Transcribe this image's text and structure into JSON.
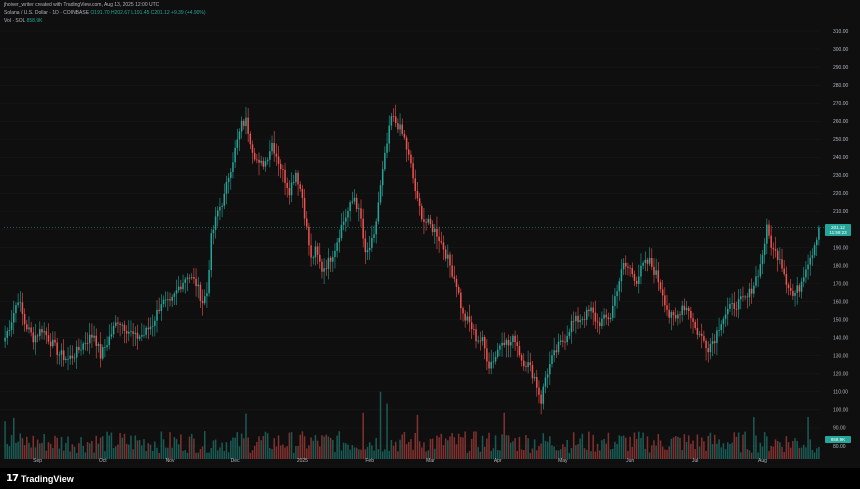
{
  "header": {
    "creator_line": "jhoiver_writer created with TradingView.com, Aug 13, 2025 12:00 UTC",
    "symbol_line": "Solana / U.S. Dollar · 1D · COINBASE",
    "ohlc": "O191.70 H202.67 L191.45 C201.12 +9.39 (+4.90%)",
    "vol_label": "Vol · SOL",
    "vol_value": "858.9K"
  },
  "price_tag": {
    "value": "201.12",
    "countdown": "11:59:23"
  },
  "vol_tag": {
    "value": "858.9K"
  },
  "footer": {
    "brand_mark": "17",
    "brand_name": "TradingView"
  },
  "colors": {
    "up": "#26a69a",
    "down": "#ef5350",
    "background": "#0f0f0f",
    "grid": "#1c1c1c"
  },
  "chart_data": {
    "type": "candlestick",
    "interval": "1D",
    "symbol": "Solana / U.S. Dollar",
    "exchange": "COINBASE",
    "y_ticks": [
      "310.00",
      "300.00",
      "290.00",
      "280.00",
      "270.00",
      "260.00",
      "250.00",
      "240.00",
      "230.00",
      "220.00",
      "210.00",
      "200.00",
      "190.00",
      "180.00",
      "170.00",
      "160.00",
      "150.00",
      "140.00",
      "130.00",
      "120.00",
      "110.00",
      "100.00",
      "90.00",
      "80.00"
    ],
    "ylim": [
      75,
      315
    ],
    "x_ticks": [
      "Sep",
      "Oct",
      "Nov",
      "Dec",
      "2025",
      "Feb",
      "Mar",
      "Apr",
      "May",
      "Jun",
      "Jul",
      "Aug"
    ],
    "x_tick_index": [
      15,
      45,
      76,
      106,
      137,
      168,
      196,
      227,
      257,
      288,
      318,
      349
    ],
    "close_path": [
      [
        0,
        140
      ],
      [
        3,
        150
      ],
      [
        6,
        162
      ],
      [
        9,
        148
      ],
      [
        13,
        140
      ],
      [
        17,
        145
      ],
      [
        21,
        138
      ],
      [
        25,
        131
      ],
      [
        29,
        128
      ],
      [
        33,
        132
      ],
      [
        37,
        138
      ],
      [
        41,
        142
      ],
      [
        44,
        130
      ],
      [
        48,
        140
      ],
      [
        52,
        150
      ],
      [
        56,
        145
      ],
      [
        60,
        140
      ],
      [
        64,
        142
      ],
      [
        68,
        148
      ],
      [
        72,
        160
      ],
      [
        76,
        158
      ],
      [
        80,
        168
      ],
      [
        84,
        175
      ],
      [
        88,
        170
      ],
      [
        91,
        160
      ],
      [
        93,
        165
      ],
      [
        95,
        195
      ],
      [
        98,
        210
      ],
      [
        101,
        218
      ],
      [
        103,
        230
      ],
      [
        106,
        244
      ],
      [
        109,
        258
      ],
      [
        111,
        260
      ],
      [
        114,
        245
      ],
      [
        117,
        235
      ],
      [
        120,
        238
      ],
      [
        123,
        248
      ],
      [
        126,
        238
      ],
      [
        129,
        228
      ],
      [
        131,
        222
      ],
      [
        134,
        232
      ],
      [
        137,
        218
      ],
      [
        139,
        200
      ],
      [
        141,
        183
      ],
      [
        143,
        188
      ],
      [
        146,
        178
      ],
      [
        149,
        182
      ],
      [
        152,
        190
      ],
      [
        155,
        202
      ],
      [
        158,
        210
      ],
      [
        161,
        218
      ],
      [
        164,
        205
      ],
      [
        166,
        185
      ],
      [
        168,
        190
      ],
      [
        170,
        195
      ],
      [
        172,
        215
      ],
      [
        175,
        240
      ],
      [
        178,
        262
      ],
      [
        181,
        258
      ],
      [
        184,
        250
      ],
      [
        187,
        235
      ],
      [
        190,
        215
      ],
      [
        193,
        205
      ],
      [
        196,
        202
      ],
      [
        199,
        198
      ],
      [
        202,
        190
      ],
      [
        205,
        180
      ],
      [
        208,
        170
      ],
      [
        211,
        152
      ],
      [
        214,
        148
      ],
      [
        217,
        140
      ],
      [
        220,
        138
      ],
      [
        223,
        125
      ],
      [
        226,
        130
      ],
      [
        229,
        140
      ],
      [
        232,
        136
      ],
      [
        235,
        140
      ],
      [
        238,
        128
      ],
      [
        241,
        125
      ],
      [
        244,
        118
      ],
      [
        247,
        105
      ],
      [
        249,
        118
      ],
      [
        252,
        128
      ],
      [
        255,
        135
      ],
      [
        258,
        140
      ],
      [
        261,
        148
      ],
      [
        264,
        150
      ],
      [
        267,
        152
      ],
      [
        270,
        155
      ],
      [
        273,
        148
      ],
      [
        276,
        150
      ],
      [
        279,
        152
      ],
      [
        282,
        168
      ],
      [
        285,
        180
      ],
      [
        288,
        178
      ],
      [
        291,
        172
      ],
      [
        294,
        180
      ],
      [
        297,
        182
      ],
      [
        300,
        175
      ],
      [
        303,
        165
      ],
      [
        306,
        152
      ],
      [
        309,
        150
      ],
      [
        312,
        158
      ],
      [
        315,
        156
      ],
      [
        318,
        145
      ],
      [
        321,
        140
      ],
      [
        324,
        135
      ],
      [
        327,
        140
      ],
      [
        330,
        150
      ],
      [
        333,
        155
      ],
      [
        336,
        158
      ],
      [
        339,
        160
      ],
      [
        342,
        162
      ],
      [
        345,
        170
      ],
      [
        348,
        180
      ],
      [
        351,
        200
      ],
      [
        354,
        188
      ],
      [
        357,
        185
      ],
      [
        360,
        172
      ],
      [
        363,
        163
      ],
      [
        366,
        168
      ],
      [
        369,
        180
      ],
      [
        372,
        188
      ],
      [
        375,
        201
      ]
    ],
    "last_close": 201.12,
    "volume_spikes": [
      [
        0,
        90
      ],
      [
        173,
        160
      ],
      [
        176,
        132
      ],
      [
        4,
        98
      ],
      [
        111,
        108
      ],
      [
        165,
        110
      ],
      [
        190,
        105
      ],
      [
        230,
        110
      ],
      [
        345,
        100
      ],
      [
        370,
        100
      ]
    ]
  }
}
